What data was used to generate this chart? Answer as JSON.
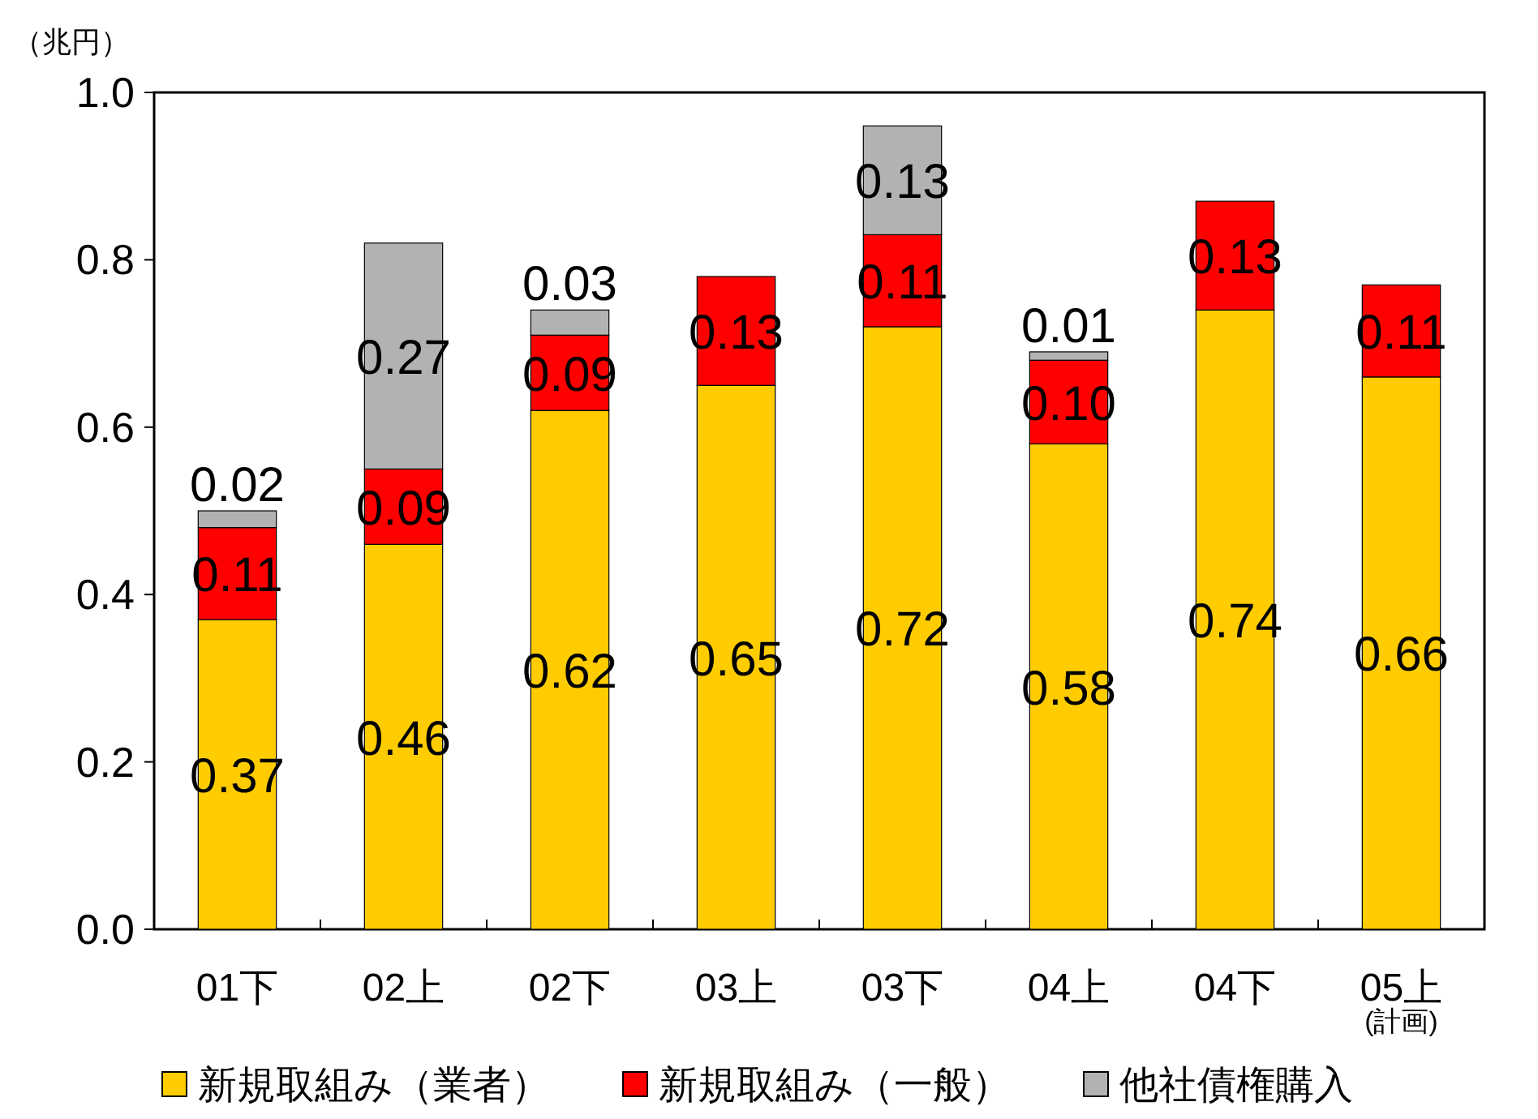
{
  "chart_data": {
    "type": "bar",
    "stacked": true,
    "ylabel": "（兆円）",
    "categories": [
      "01下",
      "02上",
      "02下",
      "03上",
      "03下",
      "04上",
      "04下",
      "05上$_{(計画)}$"
    ],
    "series": [
      {
        "name": "新規取組み（業者）",
        "color": "#ffcc00",
        "values": [
          0.37,
          0.46,
          0.62,
          0.65,
          0.72,
          0.58,
          0.74,
          0.66
        ],
        "value_labels": [
          "0.37",
          "0.46",
          "0.62",
          "0.65",
          "0.72",
          "0.58",
          "0.74",
          "0.66"
        ]
      },
      {
        "name": "新規取組み（一般）",
        "color": "#ff0000",
        "values": [
          0.11,
          0.09,
          0.09,
          0.13,
          0.11,
          0.1,
          0.13,
          0.11
        ],
        "value_labels": [
          "0.11",
          "0.09",
          "0.09",
          "0.13",
          "0.11",
          "0.10",
          "0.13",
          "0.11"
        ]
      },
      {
        "name": "他社債権購入",
        "color": "#b2b2b2",
        "values": [
          0.02,
          0.27,
          0.03,
          null,
          0.13,
          0.01,
          null,
          null
        ],
        "value_labels": [
          "0.02",
          "0.27",
          "0.03",
          null,
          "0.13",
          "0.01",
          null,
          null
        ]
      }
    ],
    "ylim": [
      0,
      1
    ],
    "yticks": [
      {
        "value": 0,
        "label": "0.0"
      },
      {
        "value": 0.2,
        "label": "0.2"
      },
      {
        "value": 0.4,
        "label": "0.4"
      },
      {
        "value": 0.6,
        "label": "0.6"
      },
      {
        "value": 0.8,
        "label": "0.8"
      },
      {
        "value": 1,
        "label": "1.0"
      }
    ],
    "legend": "bottom",
    "grid": false
  }
}
